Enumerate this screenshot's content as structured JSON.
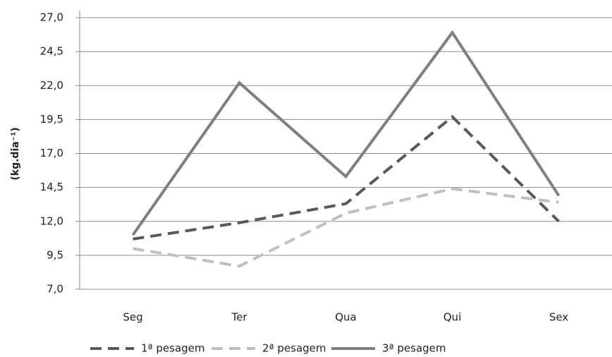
{
  "chart_data": {
    "type": "line",
    "y_label": "(kg.dia⁻¹)",
    "categories": [
      "Seg",
      "Ter",
      "Qua",
      "Qui",
      "Sex"
    ],
    "series": [
      {
        "name": "1ª pesagem",
        "color": "#595959",
        "dash": "dashed",
        "values": [
          10.7,
          11.9,
          13.3,
          19.7,
          12.0
        ]
      },
      {
        "name": "2ª pesagem",
        "color": "#bfbfbf",
        "dash": "dashed",
        "values": [
          10.0,
          8.7,
          12.6,
          14.4,
          13.4
        ]
      },
      {
        "name": "3ª pesagem",
        "color": "#7f7f7f",
        "dash": "solid",
        "values": [
          11.0,
          22.2,
          15.3,
          25.9,
          13.9
        ]
      }
    ],
    "ylim": [
      7,
      27
    ],
    "yticks": [
      {
        "value": 7,
        "label": "7,0"
      },
      {
        "value": 9.5,
        "label": "9,5"
      },
      {
        "value": 12,
        "label": "12,0"
      },
      {
        "value": 14.5,
        "label": "14,5"
      },
      {
        "value": 17,
        "label": "17,0"
      },
      {
        "value": 19.5,
        "label": "19,5"
      },
      {
        "value": 22,
        "label": "22,0"
      },
      {
        "value": 24.5,
        "label": "24,5"
      },
      {
        "value": 27,
        "label": "27,0"
      }
    ],
    "grid": true,
    "legend": "bottom"
  }
}
